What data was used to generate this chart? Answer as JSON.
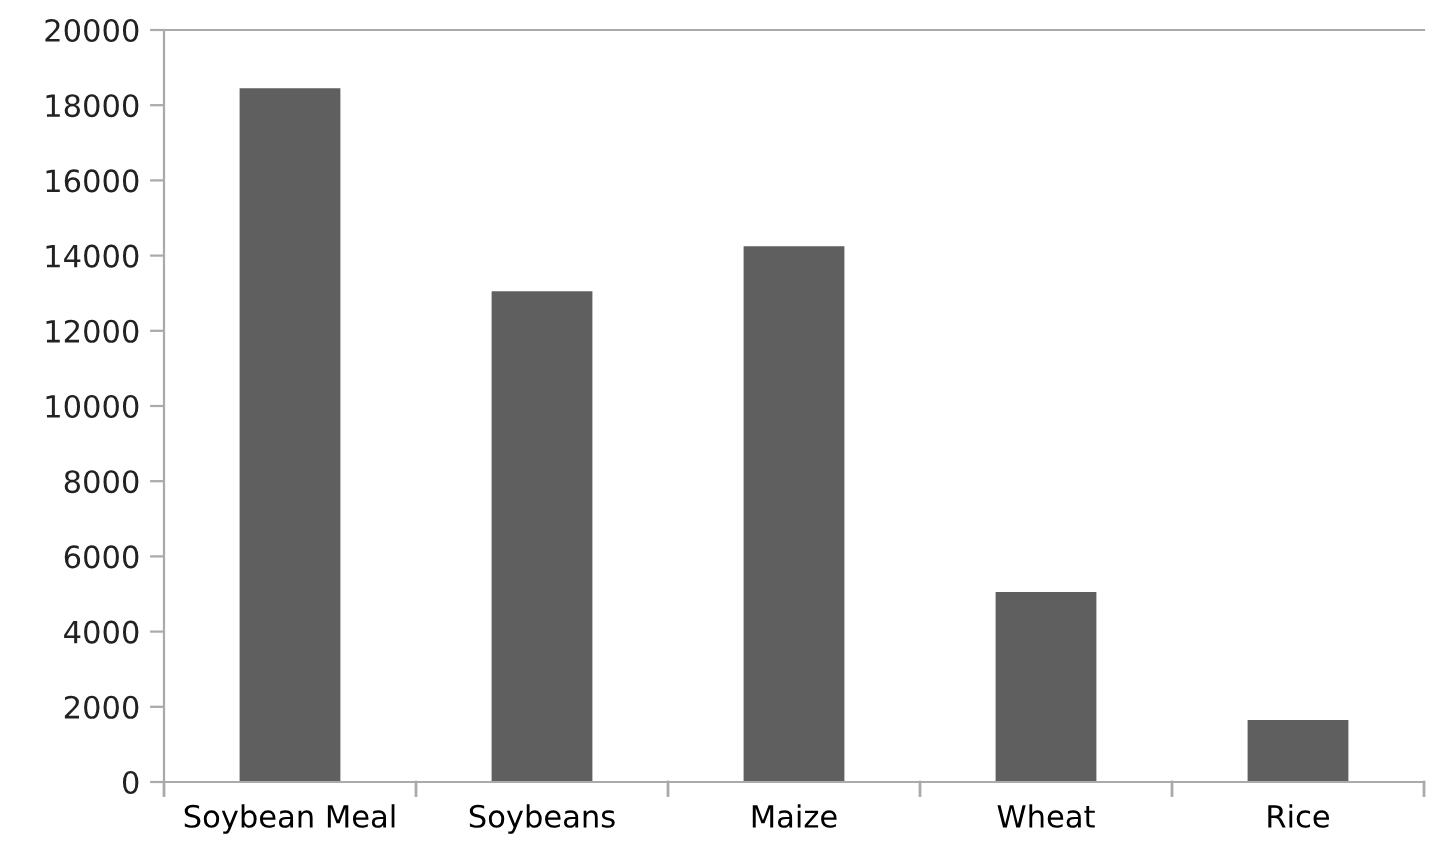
{
  "chart_data": {
    "type": "bar",
    "categories": [
      "Soybean Meal",
      "Soybeans",
      "Maize",
      "Wheat",
      "Rice"
    ],
    "values": [
      18450,
      13050,
      14250,
      5050,
      1650
    ],
    "color": "#5f5f5f",
    "ylim": [
      0,
      20000
    ],
    "yticks": [
      0,
      2000,
      4000,
      6000,
      8000,
      10000,
      12000,
      14000,
      16000,
      18000,
      20000
    ],
    "grid": false,
    "legend": false
  }
}
